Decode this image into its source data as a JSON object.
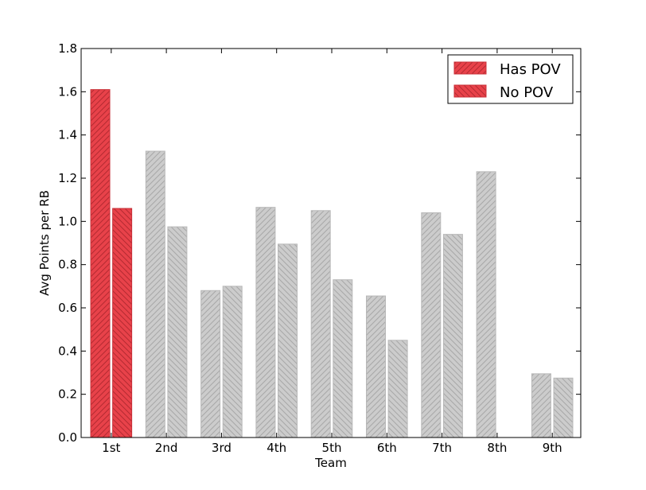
{
  "chart_data": {
    "type": "bar",
    "title": "",
    "xlabel": "Team",
    "ylabel": "Avg Points per RB",
    "ylim": [
      0,
      1.8
    ],
    "yticks": [
      "0.0",
      "0.2",
      "0.4",
      "0.6",
      "0.8",
      "1.0",
      "1.2",
      "1.4",
      "1.6",
      "1.8"
    ],
    "categories": [
      "1st",
      "2nd",
      "3rd",
      "4th",
      "5th",
      "6th",
      "7th",
      "8th",
      "9th"
    ],
    "highlighted_category": "1st",
    "series": [
      {
        "name": "Has POV",
        "values": [
          1.61,
          1.325,
          0.68,
          1.065,
          1.05,
          0.655,
          1.04,
          1.23,
          0.295
        ]
      },
      {
        "name": "No POV",
        "values": [
          1.06,
          0.975,
          0.7,
          0.895,
          0.73,
          0.45,
          0.94,
          null,
          0.275
        ]
      }
    ],
    "legend_position": "top-right",
    "grid": false,
    "colors": {
      "highlight_fill": "#e8424a",
      "highlight_edge": "#c83038",
      "highlight_hatch": "#b52a31",
      "default_fill": "#cccccc",
      "default_edge": "#b8b8b8",
      "default_hatch": "#a8a8a8"
    }
  }
}
